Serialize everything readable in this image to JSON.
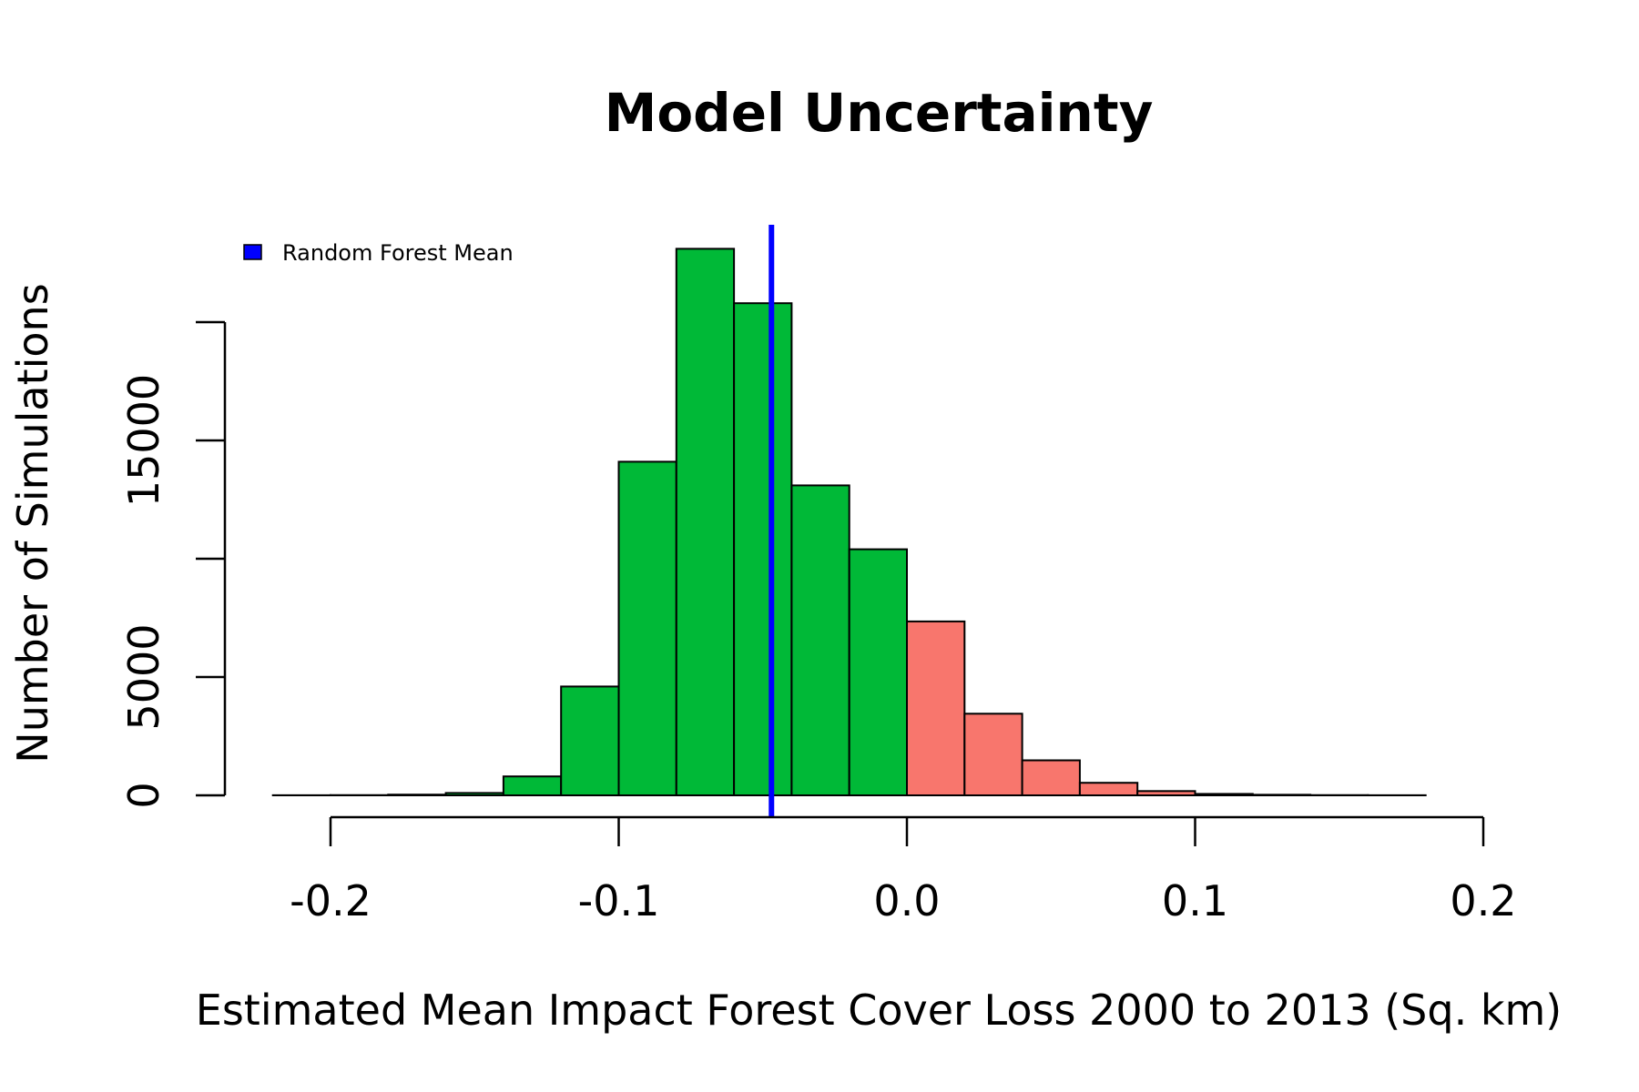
{
  "chart_data": {
    "type": "bar",
    "title": "Model Uncertainty",
    "xlabel": "Estimated Mean Impact Forest Cover Loss 2000 to 2013 (Sq. km)",
    "ylabel": "Number of Simulations",
    "xlim": [
      -0.22,
      0.2
    ],
    "ylim": [
      0,
      20000
    ],
    "x_ticks": [
      -0.2,
      -0.1,
      0.0,
      0.1,
      0.2
    ],
    "x_tick_labels": [
      "-0.2",
      "-0.1",
      "0.0",
      "0.1",
      "0.2"
    ],
    "y_ticks": [
      0,
      5000,
      10000,
      15000,
      20000
    ],
    "y_tick_labels": [
      "0",
      "5000",
      "",
      "15000",
      ""
    ],
    "bin_edges": [
      -0.22,
      -0.2,
      -0.18,
      -0.16,
      -0.14,
      -0.12,
      -0.1,
      -0.08,
      -0.06,
      -0.04,
      -0.02,
      0.0,
      0.02,
      0.04,
      0.06,
      0.08,
      0.1,
      0.12,
      0.14,
      0.16,
      0.18
    ],
    "counts": [
      5,
      10,
      30,
      100,
      800,
      4600,
      14100,
      23100,
      20800,
      13100,
      10400,
      7350,
      3450,
      1480,
      530,
      180,
      60,
      25,
      10,
      5
    ],
    "negative_color": "#00b937",
    "positive_color": "#f8766d",
    "mean_line": {
      "x": -0.047,
      "color": "#0000ff",
      "label": "Random Forest Mean"
    },
    "legend_position": "top-left"
  }
}
